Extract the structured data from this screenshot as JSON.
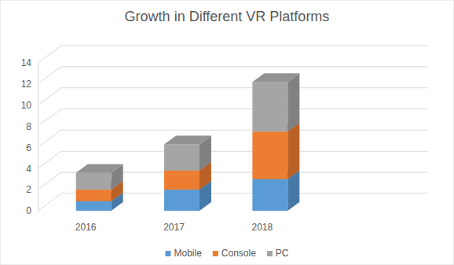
{
  "chart_data": {
    "type": "bar",
    "title": "Growth in Different VR Platforms",
    "categories": [
      "2016",
      "2017",
      "2018"
    ],
    "series": [
      {
        "name": "Mobile",
        "color": "#5b9bd5",
        "values": [
          0.9,
          2.0,
          3.0
        ]
      },
      {
        "name": "Console",
        "color": "#ed7d31",
        "values": [
          1.1,
          1.8,
          4.5
        ]
      },
      {
        "name": "PC",
        "color": "#a5a5a5",
        "values": [
          1.6,
          2.5,
          4.7
        ]
      }
    ],
    "stacked": true,
    "ylim": [
      0,
      14
    ],
    "yticks": [
      0,
      2,
      4,
      6,
      8,
      10,
      12,
      14
    ],
    "grid": true,
    "legend": "bottom"
  }
}
